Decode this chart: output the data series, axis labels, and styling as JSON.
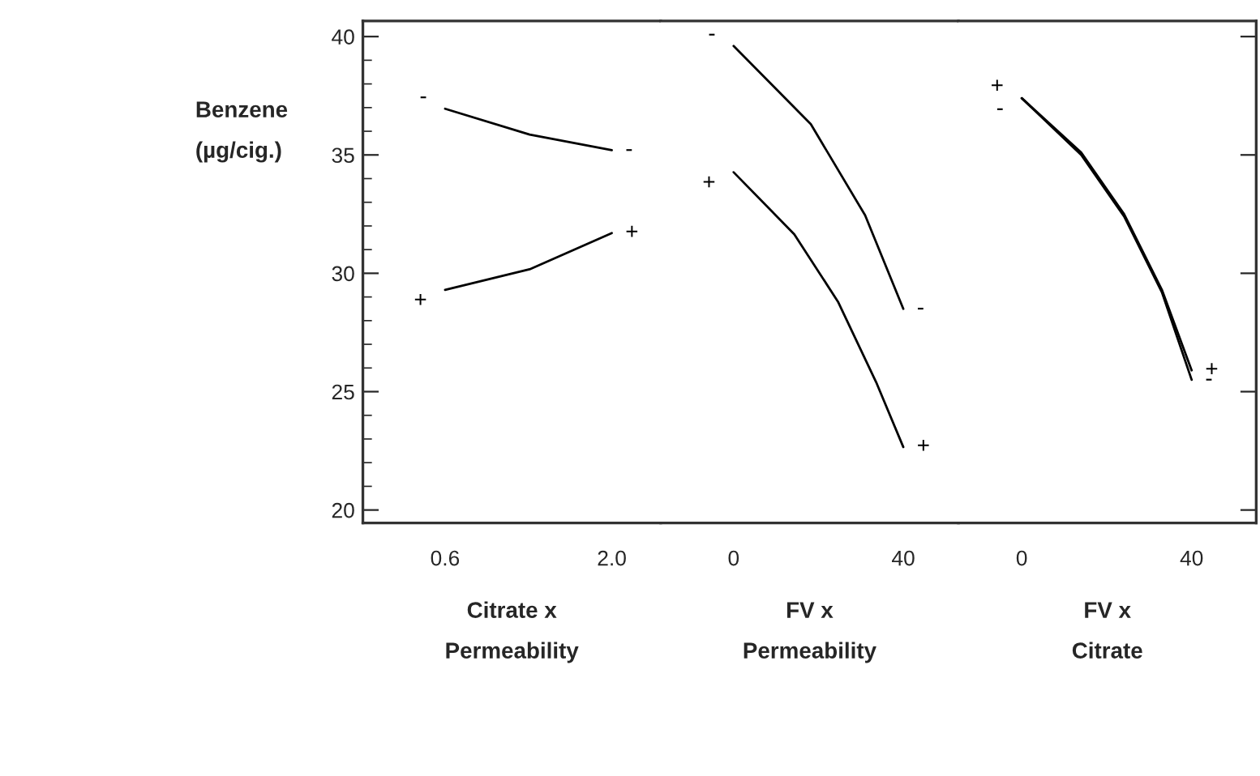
{
  "chart_data": [
    {
      "type": "line",
      "ylabel": "Benzene\n(µg/cig.)",
      "xlabel": "Citrate x\nPermeability",
      "xlim": [
        -0.09,
        2.41
      ],
      "xticks": [
        {
          "value": 0.6,
          "label": "0.6"
        },
        {
          "value": 2.0,
          "label": "2.0"
        }
      ],
      "ylim": [
        19.45,
        40.66
      ],
      "yticks": [
        20,
        25,
        30,
        35,
        40
      ],
      "series": [
        {
          "name": "-",
          "color": "#000000",
          "x": [
            0.6,
            1.31,
            2.0
          ],
          "values": [
            36.95,
            35.86,
            35.2
          ]
        },
        {
          "name": "+",
          "color": "#000000",
          "x": [
            0.6,
            1.31,
            2.0
          ],
          "values": [
            29.3,
            30.17,
            31.7
          ]
        }
      ]
    },
    {
      "type": "line",
      "xlabel": "FV x\nPermeability",
      "xlim": [
        -17.2,
        53
      ],
      "xticks": [
        0,
        40
      ],
      "ylim": [
        19.45,
        40.66
      ],
      "yticks": [
        20,
        25,
        30,
        35,
        40
      ],
      "tick_labels": "x",
      "series": [
        {
          "name": "-",
          "color": "#000000",
          "x": [
            0,
            18.2,
            31,
            40
          ],
          "values": [
            39.6,
            36.3,
            32.45,
            28.5
          ]
        },
        {
          "name": "+",
          "color": "#000000",
          "x": [
            0,
            14.3,
            24.6,
            33.6,
            40
          ],
          "values": [
            34.27,
            31.65,
            28.8,
            25.4,
            22.66
          ]
        }
      ]
    },
    {
      "type": "line",
      "xlabel": "FV x\nCitrate",
      "xlim": [
        -14.9,
        55.2
      ],
      "xticks": [
        0,
        40
      ],
      "ylim": [
        19.45,
        40.66
      ],
      "yticks": [
        20,
        25,
        30,
        35,
        40
      ],
      "tick_labels": "x",
      "series": [
        {
          "name": "+",
          "color": "#000000",
          "x": [
            0,
            14,
            24.1,
            33,
            40
          ],
          "values": [
            37.4,
            35.1,
            32.5,
            29.3,
            25.9
          ]
        },
        {
          "name": "-",
          "color": "#000000",
          "x": [
            0,
            14,
            24.1,
            33,
            40
          ],
          "values": [
            37.4,
            35.0,
            32.4,
            29.2,
            25.5
          ]
        }
      ]
    }
  ]
}
